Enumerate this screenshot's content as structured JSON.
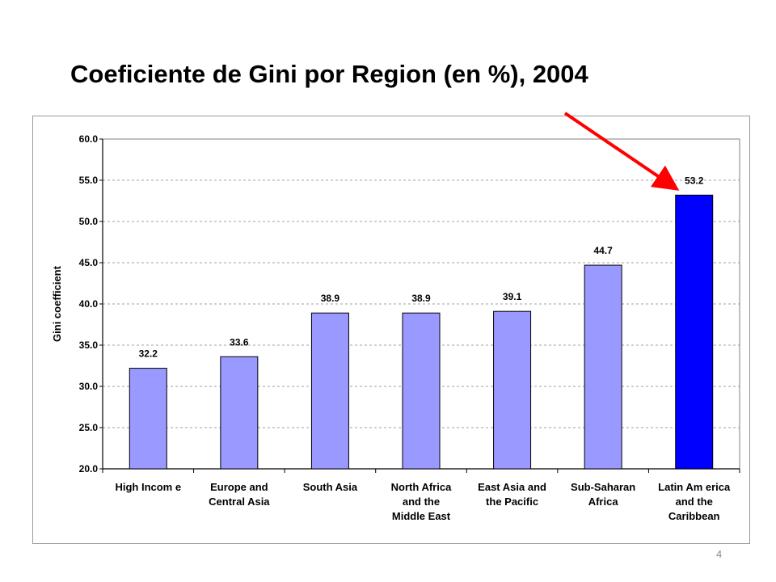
{
  "slide": {
    "title": "Coeficiente de Gini por Region (en %), 2004",
    "page_number": "4"
  },
  "colors": {
    "bar": "#9999FF",
    "highlight_bar": "#0000FF",
    "arrow": "#FF0000",
    "gridline": "#A0A0A0",
    "axis": "#000000"
  },
  "chart_data": {
    "type": "bar",
    "title": "",
    "xlabel": "",
    "ylabel": "Gini coefficient",
    "ylim": [
      20.0,
      60.0
    ],
    "yticks": [
      "20.0",
      "25.0",
      "30.0",
      "35.0",
      "40.0",
      "45.0",
      "50.0",
      "55.0",
      "60.0"
    ],
    "grid": true,
    "legend": "none",
    "categories": [
      "High Income",
      "Europe and Central Asia",
      "South Asia",
      "North Africa and the Middle East",
      "East Asia and the Pacific",
      "Sub-Saharan Africa",
      "Latin America and the Caribbean"
    ],
    "category_label_lines": [
      [
        "High Incom e"
      ],
      [
        "Europe and",
        "Central Asia"
      ],
      [
        "South Asia"
      ],
      [
        "North Africa",
        "and the",
        "Middle East"
      ],
      [
        "East Asia and",
        "the Pacific"
      ],
      [
        "Sub-Saharan",
        "Africa"
      ],
      [
        "Latin Am erica",
        "and the",
        "Caribbean"
      ]
    ],
    "values": [
      32.2,
      33.6,
      38.9,
      38.9,
      39.1,
      44.7,
      53.2
    ],
    "data_labels": [
      "32.2",
      "33.6",
      "38.9",
      "38.9",
      "39.1",
      "44.7",
      "53.2"
    ],
    "highlight_index": 6,
    "annotations": [
      {
        "type": "arrow",
        "points_to": "Latin America and the Caribbean"
      }
    ]
  }
}
